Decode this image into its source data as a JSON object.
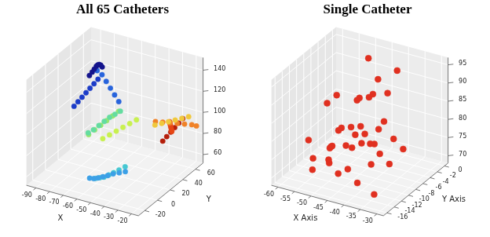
{
  "chart_data": [
    {
      "type": "scatter3d",
      "title": "All 65 Catheters",
      "x_label": "X",
      "y_label": "Y",
      "xlim": [
        -97,
        -15
      ],
      "ylim": [
        -30,
        72
      ],
      "zlim": [
        52,
        152
      ],
      "xticks": [
        -90,
        -80,
        -70,
        -60,
        -50,
        -40,
        -30,
        -20
      ],
      "yticks": [
        -20,
        0,
        20,
        40,
        60
      ],
      "zticks": [
        60,
        80,
        100,
        120,
        140
      ],
      "grid": true,
      "marker": "circle",
      "series": [
        {
          "color": "#14148c",
          "x": [
            -88,
            -86,
            -84,
            -82,
            -80,
            -78,
            -76,
            -74
          ],
          "y": [
            50,
            50,
            49,
            48,
            46,
            44,
            42,
            40
          ],
          "z": [
            120,
            124,
            128,
            132,
            135,
            137,
            138,
            138
          ]
        },
        {
          "color": "#1c3cc8",
          "x": [
            -90,
            -88,
            -86,
            -84,
            -82,
            -80,
            -78
          ],
          "y": [
            30,
            32,
            34,
            36,
            38,
            40,
            42
          ],
          "z": [
            100,
            104,
            108,
            112,
            116,
            120,
            124
          ]
        },
        {
          "color": "#2864dc",
          "x": [
            -80,
            -76,
            -72,
            -68,
            -64,
            -60
          ],
          "y": [
            45,
            44,
            42,
            40,
            38,
            36
          ],
          "z": [
            130,
            128,
            124,
            120,
            116,
            112
          ]
        },
        {
          "color": "#3ca0e6",
          "x": [
            -60,
            -56,
            -52,
            -48,
            -44,
            -40,
            -36,
            -32
          ],
          "y": [
            -10,
            -12,
            -14,
            -15,
            -16,
            -16,
            -15,
            -14
          ],
          "z": [
            62,
            64,
            67,
            70,
            73,
            76,
            78,
            80
          ]
        },
        {
          "color": "#46c8d2",
          "x": [
            -58,
            -54,
            -50,
            -46,
            -42,
            -38,
            -34
          ],
          "y": [
            -5,
            -7,
            -9,
            -10,
            -11,
            -11,
            -10
          ],
          "z": [
            60,
            63,
            66,
            70,
            74,
            78,
            82
          ]
        },
        {
          "color": "#64dca0",
          "x": [
            -75,
            -72,
            -69,
            -66,
            -63,
            -60,
            -57
          ],
          "y": [
            20,
            22,
            24,
            26,
            28,
            30,
            32
          ],
          "z": [
            85,
            88,
            92,
            96,
            100,
            103,
            106
          ]
        },
        {
          "color": "#96e66e",
          "x": [
            -70,
            -67,
            -64,
            -61,
            -58,
            -55
          ],
          "y": [
            10,
            13,
            16,
            19,
            22,
            25
          ],
          "z": [
            90,
            94,
            98,
            102,
            106,
            110
          ]
        },
        {
          "color": "#c8f050",
          "x": [
            -68,
            -64,
            -60,
            -56,
            -52,
            -48
          ],
          "y": [
            28,
            30,
            32,
            34,
            36,
            38
          ],
          "z": [
            78,
            82,
            86,
            90,
            94,
            98
          ]
        },
        {
          "color": "#f0c83c",
          "x": [
            -40,
            -36,
            -32,
            -28,
            -24,
            -20
          ],
          "y": [
            50,
            52,
            54,
            56,
            58,
            60
          ],
          "z": [
            90,
            92,
            94,
            96,
            98,
            100
          ]
        },
        {
          "color": "#f08228",
          "x": [
            -35,
            -32,
            -29,
            -26,
            -23,
            -20,
            -18
          ],
          "y": [
            40,
            45,
            50,
            55,
            60,
            65,
            68
          ],
          "z": [
            100,
            98,
            96,
            94,
            92,
            90,
            88
          ]
        },
        {
          "color": "#e64614",
          "x": [
            -30,
            -28,
            -26,
            -24,
            -22,
            -20
          ],
          "y": [
            55,
            50,
            45,
            40,
            35,
            30
          ],
          "z": [
            85,
            90,
            95,
            100,
            105,
            110
          ]
        },
        {
          "color": "#b41e0a",
          "x": [
            -32,
            -30,
            -28,
            -26,
            -24,
            -22
          ],
          "y": [
            45,
            47,
            49,
            51,
            53,
            55
          ],
          "z": [
            80,
            84,
            88,
            92,
            96,
            100
          ]
        }
      ]
    },
    {
      "type": "scatter3d",
      "title": "Single Catheter",
      "x_label": "X Axis",
      "y_label": "Y Axis",
      "xlim": [
        -62,
        -28
      ],
      "ylim": [
        -17,
        1
      ],
      "zlim": [
        68,
        97
      ],
      "xticks": [
        -60,
        -55,
        -50,
        -45,
        -40,
        -35,
        -30
      ],
      "yticks": [
        -16,
        -14,
        -12,
        -10,
        -8,
        -6,
        -4,
        -2,
        0
      ],
      "zticks": [
        70,
        75,
        80,
        85,
        90,
        95
      ],
      "grid": true,
      "marker": "circle",
      "series": [
        {
          "color": "#e03020",
          "x": [
            -58,
            -56,
            -54,
            -52,
            -50,
            -48,
            -46,
            -44,
            -42,
            -40,
            -38,
            -36,
            -34,
            -57,
            -55,
            -53,
            -51,
            -49,
            -47,
            -45,
            -43,
            -41,
            -39,
            -37,
            -35,
            -33,
            -56,
            -52,
            -48,
            -44,
            -40,
            -36,
            -50,
            -46,
            -42,
            -38,
            -54,
            -45,
            -41,
            -49
          ],
          "y": [
            -2,
            -3,
            -1,
            -4,
            -2,
            -5,
            -3,
            -6,
            -4,
            -7,
            -5,
            -8,
            -6,
            -10,
            -12,
            -9,
            -11,
            -13,
            -10,
            -14,
            -12,
            -15,
            -13,
            -16,
            -14,
            -15,
            -7,
            -8,
            -6,
            -9,
            -10,
            -11,
            -1,
            -2,
            -3,
            -4,
            -14,
            -16,
            -8,
            -12
          ],
          "z": [
            72,
            74,
            71,
            76,
            73,
            78,
            72,
            75,
            80,
            74,
            77,
            73,
            76,
            71,
            70,
            74,
            72,
            75,
            77,
            73,
            79,
            76,
            82,
            74,
            78,
            71,
            84,
            88,
            86,
            90,
            92,
            85,
            93,
            89,
            87,
            95,
            80,
            82,
            91,
            78
          ]
        }
      ]
    }
  ]
}
